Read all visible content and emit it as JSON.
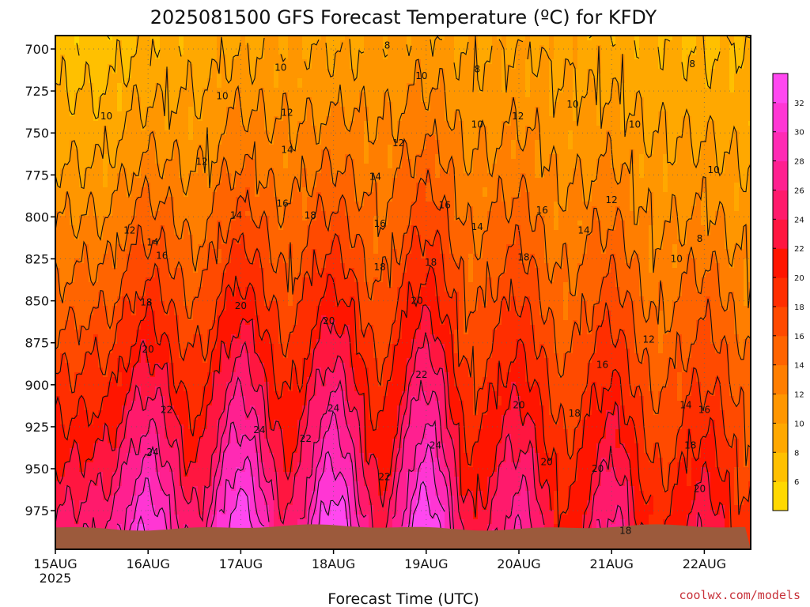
{
  "colors": {
    "temperature_scale": [
      "#ffd800",
      "#ffc000",
      "#ffa800",
      "#ff9600",
      "#ff7e00",
      "#ff6400",
      "#ff4a00",
      "#ff2e00",
      "#ff1500",
      "#ff1640",
      "#ff1a6c",
      "#ff2090",
      "#ff2ab4",
      "#ff36d4",
      "#ff48f0"
    ],
    "ground": "#9c5a3c",
    "credit": "#c8323a"
  },
  "chart_data": {
    "type": "heatmap",
    "title": "2025081500 GFS Forecast Temperature (ºC) for KFDY",
    "xlabel": "Forecast Time (UTC)",
    "ylabel": "",
    "x_ticks": [
      {
        "label": "15AUG",
        "sub": "2025",
        "day": 0
      },
      {
        "label": "16AUG",
        "sub": "",
        "day": 1
      },
      {
        "label": "17AUG",
        "sub": "",
        "day": 2
      },
      {
        "label": "18AUG",
        "sub": "",
        "day": 3
      },
      {
        "label": "19AUG",
        "sub": "",
        "day": 4
      },
      {
        "label": "20AUG",
        "sub": "",
        "day": 5
      },
      {
        "label": "21AUG",
        "sub": "",
        "day": 6
      },
      {
        "label": "22AUG",
        "sub": "",
        "day": 7
      }
    ],
    "xlim_days": [
      0,
      7.5
    ],
    "y_ticks": [
      "700",
      "725",
      "750",
      "775",
      "800",
      "825",
      "850",
      "875",
      "900",
      "925",
      "950",
      "975"
    ],
    "ylim_hpa": [
      692,
      998
    ],
    "y_inverted": true,
    "surface_pressure_hpa": 985,
    "colorbar": {
      "ticks": [
        "32",
        "30",
        "28",
        "26",
        "24",
        "22",
        "20",
        "18",
        "16",
        "14",
        "12",
        "10",
        "8",
        "6"
      ],
      "range_c": [
        4,
        34
      ],
      "step_c": 2
    },
    "contour_interval_c": 2,
    "profiles": [
      {
        "day": 0.0,
        "t700": 7,
        "t975": 24
      },
      {
        "day": 0.5,
        "t700": 7,
        "t975": 25
      },
      {
        "day": 1.0,
        "t700": 8.5,
        "t975": 31
      },
      {
        "day": 1.5,
        "t700": 9,
        "t975": 24
      },
      {
        "day": 2.0,
        "t700": 10,
        "t975": 33
      },
      {
        "day": 2.5,
        "t700": 10.5,
        "t975": 24
      },
      {
        "day": 3.0,
        "t700": 10,
        "t975": 33
      },
      {
        "day": 3.5,
        "t700": 10.5,
        "t975": 23
      },
      {
        "day": 4.0,
        "t700": 11,
        "t975": 33
      },
      {
        "day": 4.5,
        "t700": 10,
        "t975": 22
      },
      {
        "day": 5.0,
        "t700": 10,
        "t975": 27
      },
      {
        "day": 5.5,
        "t700": 9.5,
        "t975": 20
      },
      {
        "day": 6.0,
        "t700": 9,
        "t975": 26
      },
      {
        "day": 6.5,
        "t700": 8.5,
        "t975": 19
      },
      {
        "day": 7.0,
        "t700": 8,
        "t975": 23
      },
      {
        "day": 7.5,
        "t700": 8,
        "t975": 18
      }
    ],
    "contour_labels": [
      {
        "text": "8",
        "day": 3.58,
        "hpa": 698
      },
      {
        "text": "8",
        "day": 4.55,
        "hpa": 712
      },
      {
        "text": "8",
        "day": 6.87,
        "hpa": 709
      },
      {
        "text": "10",
        "day": 2.43,
        "hpa": 711
      },
      {
        "text": "10",
        "day": 3.95,
        "hpa": 716
      },
      {
        "text": "10",
        "day": 1.8,
        "hpa": 728
      },
      {
        "text": "10",
        "day": 0.55,
        "hpa": 740
      },
      {
        "text": "10",
        "day": 5.58,
        "hpa": 733
      },
      {
        "text": "10",
        "day": 4.55,
        "hpa": 745
      },
      {
        "text": "10",
        "day": 6.25,
        "hpa": 745
      },
      {
        "text": "10",
        "day": 7.1,
        "hpa": 772
      },
      {
        "text": "12",
        "day": 2.5,
        "hpa": 738
      },
      {
        "text": "12",
        "day": 4.99,
        "hpa": 740
      },
      {
        "text": "12",
        "day": 3.7,
        "hpa": 756
      },
      {
        "text": "12",
        "day": 1.58,
        "hpa": 767
      },
      {
        "text": "12",
        "day": 6.0,
        "hpa": 790
      },
      {
        "text": "12",
        "day": 0.8,
        "hpa": 808
      },
      {
        "text": "14",
        "day": 2.5,
        "hpa": 760
      },
      {
        "text": "14",
        "day": 3.45,
        "hpa": 776
      },
      {
        "text": "14",
        "day": 1.95,
        "hpa": 799
      },
      {
        "text": "14",
        "day": 1.05,
        "hpa": 815
      },
      {
        "text": "14",
        "day": 4.55,
        "hpa": 806
      },
      {
        "text": "14",
        "day": 5.7,
        "hpa": 808
      },
      {
        "text": "16",
        "day": 2.45,
        "hpa": 792
      },
      {
        "text": "16",
        "day": 4.2,
        "hpa": 793
      },
      {
        "text": "16",
        "day": 3.5,
        "hpa": 804
      },
      {
        "text": "16",
        "day": 1.15,
        "hpa": 823
      },
      {
        "text": "16",
        "day": 5.25,
        "hpa": 796
      },
      {
        "text": "18",
        "day": 2.75,
        "hpa": 799
      },
      {
        "text": "18",
        "day": 3.5,
        "hpa": 830
      },
      {
        "text": "18",
        "day": 4.05,
        "hpa": 827
      },
      {
        "text": "18",
        "day": 5.05,
        "hpa": 824
      },
      {
        "text": "18",
        "day": 0.98,
        "hpa": 851
      },
      {
        "text": "18",
        "day": 5.6,
        "hpa": 917
      },
      {
        "text": "18",
        "day": 6.85,
        "hpa": 936
      },
      {
        "text": "18",
        "day": 6.15,
        "hpa": 987
      },
      {
        "text": "20",
        "day": 2.0,
        "hpa": 853
      },
      {
        "text": "20",
        "day": 2.95,
        "hpa": 862
      },
      {
        "text": "20",
        "day": 3.9,
        "hpa": 850
      },
      {
        "text": "20",
        "day": 1.0,
        "hpa": 879
      },
      {
        "text": "20",
        "day": 5.0,
        "hpa": 912
      },
      {
        "text": "20",
        "day": 5.3,
        "hpa": 946
      },
      {
        "text": "20",
        "day": 5.85,
        "hpa": 950
      },
      {
        "text": "20",
        "day": 6.95,
        "hpa": 962
      },
      {
        "text": "22",
        "day": 1.2,
        "hpa": 915
      },
      {
        "text": "22",
        "day": 2.7,
        "hpa": 932
      },
      {
        "text": "22",
        "day": 3.95,
        "hpa": 894
      },
      {
        "text": "22",
        "day": 3.55,
        "hpa": 955
      },
      {
        "text": "24",
        "day": 1.05,
        "hpa": 940
      },
      {
        "text": "24",
        "day": 2.2,
        "hpa": 927
      },
      {
        "text": "24",
        "day": 3.0,
        "hpa": 914
      },
      {
        "text": "24",
        "day": 4.1,
        "hpa": 936
      },
      {
        "text": "12",
        "day": 6.4,
        "hpa": 873
      },
      {
        "text": "14",
        "day": 6.8,
        "hpa": 912
      },
      {
        "text": "16",
        "day": 5.9,
        "hpa": 888
      },
      {
        "text": "16",
        "day": 7.0,
        "hpa": 915
      },
      {
        "text": "10",
        "day": 6.7,
        "hpa": 825
      },
      {
        "text": "8",
        "day": 6.95,
        "hpa": 813
      }
    ]
  },
  "credit": "coolwx.com/models"
}
